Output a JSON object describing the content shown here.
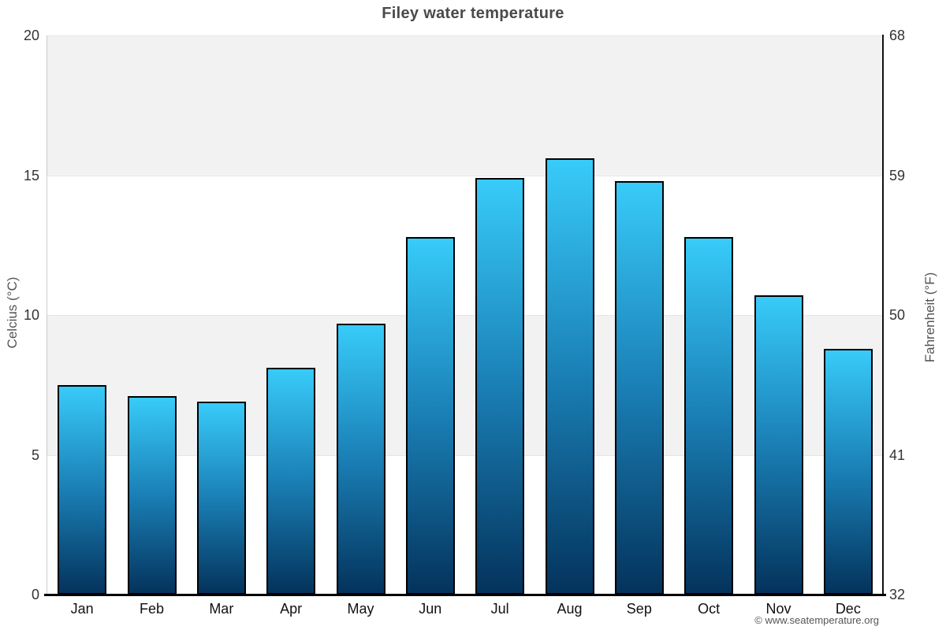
{
  "title": "Filey water temperature",
  "copyright": "© www.seatemperature.org",
  "y_axis_left": {
    "label": "Celcius (°C)"
  },
  "y_axis_right": {
    "label": "Fahrenheit (°F)"
  },
  "chart_data": {
    "type": "bar",
    "title": "Filey water temperature",
    "categories": [
      "Jan",
      "Feb",
      "Mar",
      "Apr",
      "May",
      "Jun",
      "Jul",
      "Aug",
      "Sep",
      "Oct",
      "Nov",
      "Dec"
    ],
    "values": [
      7.5,
      7.1,
      6.9,
      8.1,
      9.7,
      12.8,
      14.9,
      15.6,
      14.8,
      12.8,
      10.7,
      8.8
    ],
    "unit": "°C",
    "xlabel": "",
    "ylabel_left": "Celcius (°C)",
    "ylabel_right": "Fahrenheit (°F)",
    "ylim_left": [
      0,
      20
    ],
    "ylim_right": [
      32,
      68
    ],
    "yticks_left": [
      0,
      5,
      10,
      15,
      20
    ],
    "yticks_right": [
      32,
      41,
      50,
      59,
      68
    ],
    "legend": "none",
    "grid": "alternating-horizontal-bands",
    "band_colors": [
      "#ffffff",
      "#f2f2f2"
    ],
    "bar_gradient": [
      "#38cbf9",
      "#1a7fb5",
      "#04335c"
    ],
    "bar_border_color": "#000000"
  },
  "colors": {
    "title": "#4a4a4a",
    "tick_label": "#333333",
    "month_label": "#111111",
    "axis_title": "#555555",
    "copyright": "#555555",
    "gridline": "#e6e6e6",
    "axis_left_line": "#cccccc",
    "axis_right_line": "#111111",
    "axis_bottom_line": "#000000",
    "background": "#ffffff"
  }
}
